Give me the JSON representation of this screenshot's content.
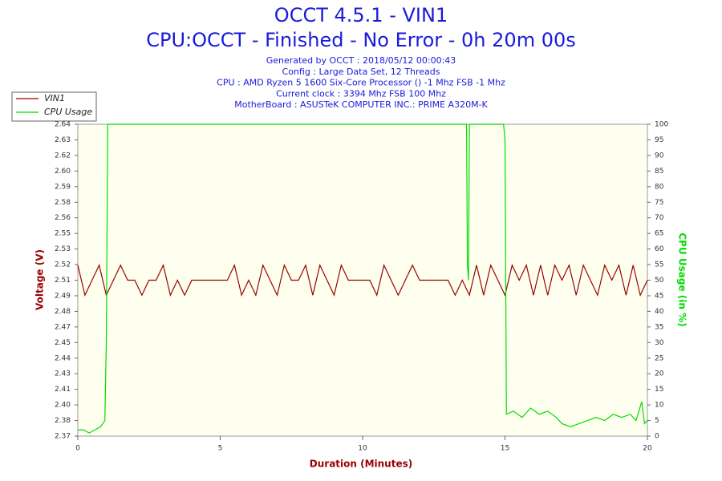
{
  "chart_data": {
    "type": "line",
    "title": "OCCT 4.5.1 - VIN1",
    "subtitle": "CPU:OCCT - Finished - No Error - 0h 20m 00s",
    "info_lines": [
      "Generated by OCCT : 2018/05/12 00:00:43",
      "Config : Large Data Set, 12 Threads",
      "CPU : AMD Ryzen 5 1600 Six-Core Processor () -1 Mhz FSB -1 Mhz",
      "Current clock : 3394 Mhz FSB 100 Mhz",
      "MotherBoard : ASUSTeK COMPUTER INC.: PRIME A320M-K"
    ],
    "x_label": "Duration (Minutes)",
    "y_label": "Voltage (V)",
    "y2_label": "CPU Usage (in %)",
    "xlim": [
      0,
      20
    ],
    "xticks": [
      0,
      5,
      10,
      15,
      20
    ],
    "ylim": [
      2.37,
      2.64
    ],
    "yticks": [
      {
        "value": 2.37,
        "label": "2.37"
      },
      {
        "value": 2.3835,
        "label": "2.38"
      },
      {
        "value": 2.397,
        "label": "2.40"
      },
      {
        "value": 2.4105,
        "label": "2.41"
      },
      {
        "value": 2.424,
        "label": "2.43"
      },
      {
        "value": 2.4375,
        "label": "2.44"
      },
      {
        "value": 2.451,
        "label": "2.45"
      },
      {
        "value": 2.4645,
        "label": "2.47"
      },
      {
        "value": 2.478,
        "label": "2.48"
      },
      {
        "value": 2.4915,
        "label": "2.49"
      },
      {
        "value": 2.505,
        "label": "2.51"
      },
      {
        "value": 2.5185,
        "label": "2.52"
      },
      {
        "value": 2.532,
        "label": "2.53"
      },
      {
        "value": 2.5455,
        "label": "2.55"
      },
      {
        "value": 2.559,
        "label": "2.56"
      },
      {
        "value": 2.5725,
        "label": "2.58"
      },
      {
        "value": 2.586,
        "label": "2.59"
      },
      {
        "value": 2.5995,
        "label": "2.60"
      },
      {
        "value": 2.613,
        "label": "2.62"
      },
      {
        "value": 2.6265,
        "label": "2.63"
      },
      {
        "value": 2.64,
        "label": "2.64"
      }
    ],
    "y2lim": [
      0,
      100
    ],
    "y2ticks": [
      0,
      5,
      10,
      15,
      20,
      25,
      30,
      35,
      40,
      45,
      50,
      55,
      60,
      65,
      70,
      75,
      80,
      85,
      90,
      95,
      100
    ],
    "grid": false,
    "legend": "top-left",
    "series": [
      {
        "name": "VIN1",
        "color": "#990000",
        "x": [
          0,
          0.25,
          0.5,
          0.75,
          1,
          1.25,
          1.5,
          1.75,
          2,
          2.25,
          2.5,
          2.75,
          3,
          3.25,
          3.5,
          3.75,
          4,
          4.25,
          4.5,
          4.75,
          5,
          5.25,
          5.5,
          5.75,
          6,
          6.25,
          6.5,
          6.75,
          7,
          7.25,
          7.5,
          7.75,
          8,
          8.25,
          8.5,
          8.75,
          9,
          9.25,
          9.5,
          9.75,
          10,
          10.25,
          10.5,
          10.75,
          11,
          11.25,
          11.5,
          11.75,
          12,
          12.25,
          12.5,
          12.75,
          13,
          13.25,
          13.5,
          13.75,
          14,
          14.25,
          14.5,
          14.75,
          15,
          15.25,
          15.5,
          15.75,
          16,
          16.25,
          16.5,
          16.75,
          17,
          17.25,
          17.5,
          17.75,
          18,
          18.25,
          18.5,
          18.75,
          19,
          19.25,
          19.5,
          19.75,
          20
        ],
        "values": [
          2.518,
          2.492,
          2.505,
          2.518,
          2.492,
          2.505,
          2.518,
          2.505,
          2.505,
          2.492,
          2.505,
          2.505,
          2.518,
          2.492,
          2.505,
          2.492,
          2.505,
          2.505,
          2.505,
          2.505,
          2.505,
          2.505,
          2.518,
          2.492,
          2.505,
          2.492,
          2.518,
          2.505,
          2.492,
          2.518,
          2.505,
          2.505,
          2.518,
          2.492,
          2.518,
          2.505,
          2.492,
          2.518,
          2.505,
          2.505,
          2.505,
          2.505,
          2.492,
          2.518,
          2.505,
          2.492,
          2.505,
          2.518,
          2.505,
          2.505,
          2.505,
          2.505,
          2.505,
          2.492,
          2.505,
          2.492,
          2.518,
          2.492,
          2.518,
          2.505,
          2.492,
          2.518,
          2.505,
          2.518,
          2.492,
          2.518,
          2.492,
          2.518,
          2.505,
          2.518,
          2.492,
          2.518,
          2.505,
          2.492,
          2.518,
          2.505,
          2.518,
          2.492,
          2.518,
          2.492,
          2.505
        ]
      },
      {
        "name": "CPU Usage",
        "color": "#00dd00",
        "axis": "y2",
        "x": [
          0,
          0.2,
          0.4,
          0.6,
          0.8,
          0.95,
          1.0,
          1.05,
          1.1,
          13.6,
          13.65,
          13.68,
          13.72,
          13.75,
          13.8,
          14.95,
          15.0,
          15.05,
          15.3,
          15.6,
          15.9,
          16.2,
          16.5,
          16.8,
          17.0,
          17.3,
          17.6,
          17.9,
          18.2,
          18.5,
          18.8,
          19.1,
          19.4,
          19.6,
          19.8,
          19.9,
          20
        ],
        "values": [
          2,
          2,
          1,
          2,
          3,
          5,
          30,
          100,
          100,
          100,
          100,
          55,
          50,
          100,
          100,
          100,
          95,
          7,
          8,
          6,
          9,
          7,
          8,
          6,
          4,
          3,
          4,
          5,
          6,
          5,
          7,
          6,
          7,
          5,
          11,
          4,
          5
        ]
      }
    ]
  }
}
